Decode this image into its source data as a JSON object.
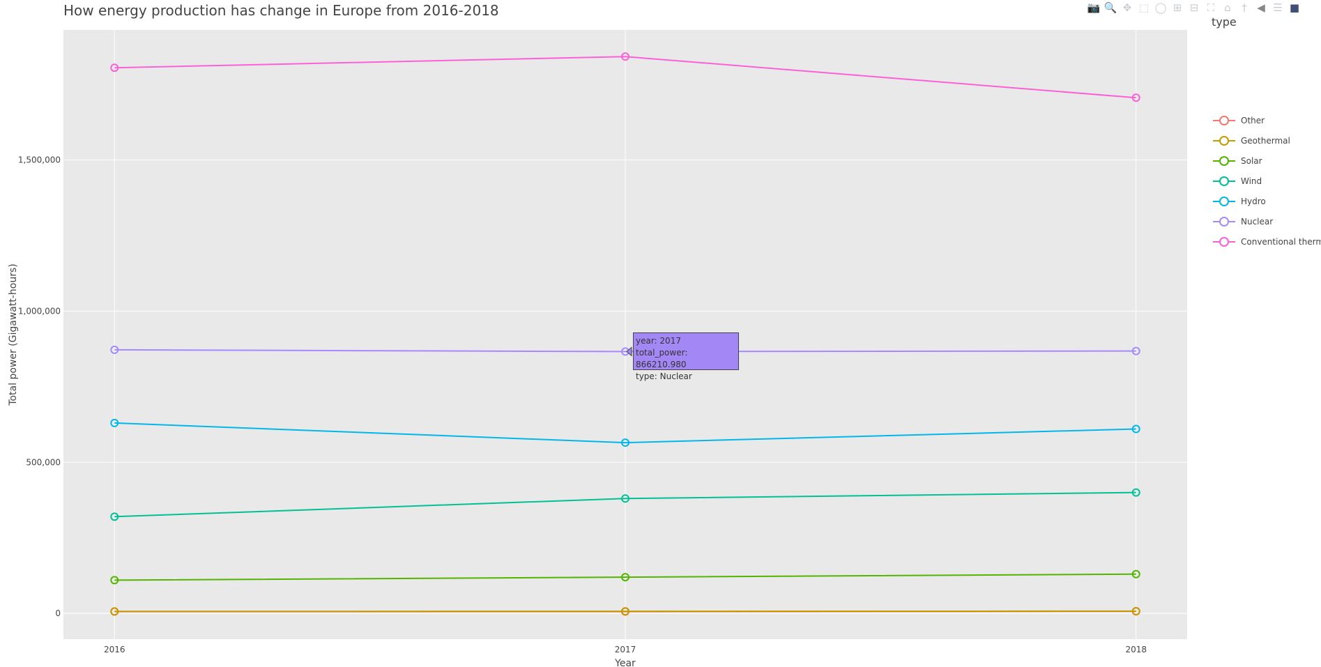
{
  "title": "How energy production has change in Europe from 2016-2018",
  "legend_title": "type",
  "modebar": [
    "camera-icon",
    "zoom-icon",
    "pan-icon",
    "box-select-icon",
    "lasso-icon",
    "zoom-in-icon",
    "zoom-out-icon",
    "autoscale-icon",
    "home-icon",
    "spike-icon",
    "hover-closest-icon",
    "hover-compare-icon",
    "plotly-logo-icon"
  ],
  "tooltip": {
    "line1": "year: 2017",
    "line2": "total_power:  866210.980",
    "line3": "type: Nuclear"
  },
  "chart_data": {
    "type": "line",
    "title": "How energy production has change in Europe from 2016-2018",
    "xlabel": "Year",
    "ylabel": "Total power (Gigawatt-hours)",
    "x": [
      2016,
      2017,
      2018
    ],
    "x_ticks": [
      "2016",
      "2017",
      "2018"
    ],
    "ylim": [
      -85000,
      1930000
    ],
    "y_ticks": [
      0,
      500000,
      1000000,
      1500000
    ],
    "y_tick_labels": [
      "0",
      "500,000",
      "1,000,000",
      "1,500,000"
    ],
    "grid": true,
    "legend_placement": "right",
    "series": [
      {
        "name": "Other",
        "color": "#f8766d",
        "values": [
          6000,
          6000,
          7000
        ]
      },
      {
        "name": "Geothermal",
        "color": "#c49a00",
        "values": [
          6500,
          7000,
          7500
        ]
      },
      {
        "name": "Solar",
        "color": "#53b400",
        "values": [
          110000,
          120000,
          130000
        ]
      },
      {
        "name": "Wind",
        "color": "#00c094",
        "values": [
          320000,
          380000,
          400000
        ]
      },
      {
        "name": "Hydro",
        "color": "#00b6eb",
        "values": [
          630000,
          565000,
          610000
        ]
      },
      {
        "name": "Nuclear",
        "color": "#a58aff",
        "values": [
          872000,
          866210.98,
          868000
        ]
      },
      {
        "name": "Conventional thermal",
        "color": "#fb61d7",
        "values": [
          1805000,
          1842000,
          1706000
        ]
      }
    ]
  }
}
